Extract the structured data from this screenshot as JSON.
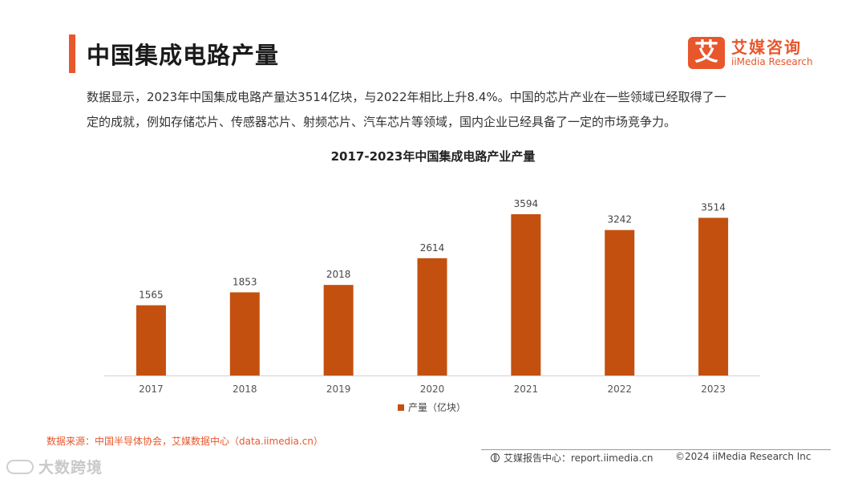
{
  "header": {
    "title": "中国集成电路产量",
    "logo_mark": "艾",
    "logo_cn": "艾媒咨询",
    "logo_en": "iiMedia Research"
  },
  "summary": {
    "line1": "数据显示，2023年中国集成电路产量达3514亿块，与2022年相比上升8.4%。中国的芯片产业在一些领域已经取得了一",
    "line2": "定的成就，例如存储芯片、传感器芯片、射频芯片、汽车芯片等领域，国内企业已经具备了一定的市场竞争力。"
  },
  "chart_data": {
    "type": "bar",
    "title": "2017-2023年中国集成电路产业产量",
    "categories": [
      "2017",
      "2018",
      "2019",
      "2020",
      "2021",
      "2022",
      "2023"
    ],
    "series": [
      {
        "name": "产量（亿块）",
        "values": [
          1565,
          1853,
          2018,
          2614,
          3594,
          3242,
          3514
        ]
      }
    ],
    "ylim": [
      0,
      3594
    ],
    "xlabel": "",
    "ylabel": "",
    "legend": "bottom-center",
    "grid": false,
    "color": "#c4500f"
  },
  "footer": {
    "source": "数据来源：中国半导体协会，艾媒数据中心（data.iimedia.cn）",
    "report": "艾媒报告中心：report.iimedia.cn",
    "copyright": "©2024  iiMedia Research  Inc"
  },
  "watermark": {
    "text": "大数跨境"
  }
}
